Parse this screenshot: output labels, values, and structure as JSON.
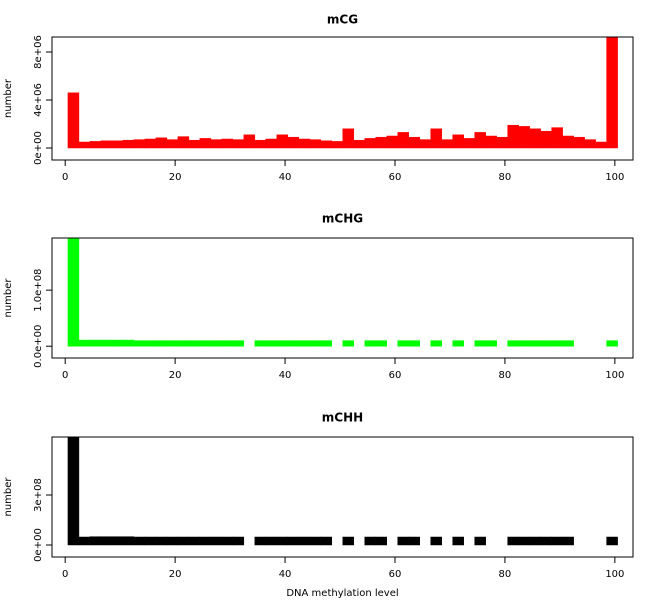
{
  "chart_data": [
    {
      "type": "histogram",
      "title": "mCG",
      "ylabel": "number",
      "color": "#ff0000",
      "bins": [
        0.5,
        2.5,
        4.5,
        6.5,
        8.5,
        10.5,
        12.5,
        14.5,
        16.5,
        18.5,
        20.5,
        22.5,
        24.5,
        26.5,
        28.5,
        30.5,
        32.5,
        34.5,
        36.5,
        38.5,
        40.5,
        42.5,
        44.5,
        46.5,
        48.5,
        50.5,
        52.5,
        54.5,
        56.5,
        58.5,
        60.5,
        62.5,
        64.5,
        66.5,
        68.5,
        70.5,
        72.5,
        74.5,
        76.5,
        78.5,
        80.5,
        82.5,
        84.5,
        86.5,
        88.5,
        90.5,
        92.5,
        94.5,
        96.5,
        98.5,
        100.5
      ],
      "values": [
        4600000,
        500000,
        550000,
        600000,
        600000,
        650000,
        700000,
        750000,
        850000,
        700000,
        950000,
        650000,
        800000,
        700000,
        750000,
        700000,
        1100000,
        650000,
        750000,
        1100000,
        900000,
        750000,
        700000,
        600000,
        550000,
        1600000,
        650000,
        800000,
        900000,
        1000000,
        1300000,
        900000,
        700000,
        1600000,
        700000,
        1100000,
        800000,
        1300000,
        1000000,
        900000,
        1900000,
        1800000,
        1600000,
        1400000,
        1700000,
        1000000,
        900000,
        700000,
        500000,
        9800000
      ],
      "xlim": [
        -2.4,
        103.3
      ],
      "xticks": [
        0,
        20,
        40,
        60,
        80,
        100
      ],
      "ylim": [
        -1000000,
        9250000
      ],
      "yticks": [
        {
          "value": 0,
          "label": "0e+00"
        },
        {
          "value": 4000000,
          "label": "4e+06"
        },
        {
          "value": 8000000,
          "label": "8e+06"
        }
      ]
    },
    {
      "type": "histogram",
      "title": "mCHG",
      "ylabel": "number",
      "color": "#00ff00",
      "bins": [
        0.5,
        2.5,
        4.5,
        6.5,
        8.5,
        10.5,
        12.5,
        14.5,
        16.5,
        18.5,
        20.5,
        22.5,
        24.5,
        26.5,
        28.5,
        30.5,
        32.5,
        34.5,
        36.5,
        38.5,
        40.5,
        42.5,
        44.5,
        46.5,
        48.5,
        50.5,
        52.5,
        54.5,
        56.5,
        58.5,
        60.5,
        62.5,
        64.5,
        66.5,
        68.5,
        70.5,
        72.5,
        74.5,
        76.5,
        78.5,
        80.5,
        82.5,
        84.5,
        86.5,
        88.5,
        90.5,
        92.5,
        94.5,
        96.5,
        98.5,
        100.5
      ],
      "values": [
        195000000,
        11000000,
        11000000,
        11000000,
        11000000,
        11000000,
        10000000,
        10000000,
        10000000,
        10000000,
        10000000,
        10000000,
        10000000,
        10000000,
        10000000,
        10000000,
        0,
        10000000,
        10000000,
        10000000,
        10000000,
        10000000,
        10000000,
        10000000,
        0,
        10000000,
        0,
        10000000,
        10000000,
        0,
        10000000,
        10000000,
        0,
        10000000,
        0,
        10000000,
        0,
        10000000,
        10000000,
        0,
        10000000,
        10000000,
        10000000,
        10000000,
        10000000,
        10000000,
        0,
        0,
        0,
        10000000
      ],
      "xlim": [
        -2.4,
        103.3
      ],
      "xticks": [
        0,
        20,
        40,
        60,
        80,
        100
      ],
      "ylim": [
        -21000000,
        193000000
      ],
      "yticks": [
        {
          "value": 0,
          "label": "0.0e+00"
        },
        {
          "value": 100000000,
          "label": "1.0e+08"
        }
      ]
    },
    {
      "type": "histogram",
      "title": "mCHH",
      "ylabel": "number",
      "xlabel": "DNA methylation level",
      "color": "#000000",
      "bins": [
        0.5,
        2.5,
        4.5,
        6.5,
        8.5,
        10.5,
        12.5,
        14.5,
        16.5,
        18.5,
        20.5,
        22.5,
        24.5,
        26.5,
        28.5,
        30.5,
        32.5,
        34.5,
        36.5,
        38.5,
        40.5,
        42.5,
        44.5,
        46.5,
        48.5,
        50.5,
        52.5,
        54.5,
        56.5,
        58.5,
        60.5,
        62.5,
        64.5,
        66.5,
        68.5,
        70.5,
        72.5,
        74.5,
        76.5,
        78.5,
        80.5,
        82.5,
        84.5,
        86.5,
        88.5,
        90.5,
        92.5,
        94.5,
        96.5,
        98.5,
        100.5
      ],
      "values": [
        650000000,
        48000000,
        50000000,
        50000000,
        50000000,
        50000000,
        48000000,
        48000000,
        48000000,
        48000000,
        48000000,
        48000000,
        48000000,
        48000000,
        48000000,
        48000000,
        0,
        48000000,
        48000000,
        48000000,
        48000000,
        48000000,
        48000000,
        48000000,
        0,
        48000000,
        0,
        48000000,
        48000000,
        0,
        48000000,
        48000000,
        0,
        48000000,
        0,
        48000000,
        0,
        48000000,
        0,
        0,
        48000000,
        48000000,
        48000000,
        48000000,
        48000000,
        48000000,
        0,
        0,
        0,
        48000000
      ],
      "xlim": [
        -2.4,
        103.3
      ],
      "xticks": [
        0,
        20,
        40,
        60,
        80,
        100
      ],
      "ylim": [
        -72000000,
        648000000
      ],
      "yticks": [
        {
          "value": 0,
          "label": "0e+00"
        },
        {
          "value": 300000000,
          "label": "3e+08"
        }
      ]
    }
  ]
}
